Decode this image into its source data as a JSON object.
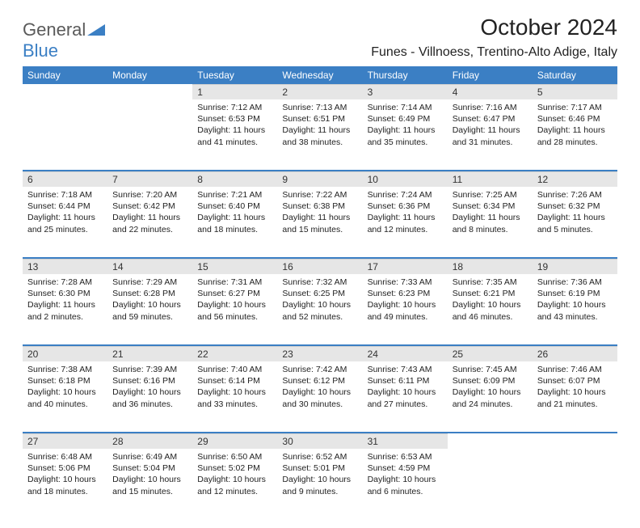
{
  "brand": {
    "name_part1": "General",
    "name_part2": "Blue"
  },
  "title": "October 2024",
  "location": "Funes - Villnoess, Trentino-Alto Adige, Italy",
  "colors": {
    "header_bg": "#3b7fc4",
    "header_text": "#ffffff",
    "daynum_bg": "#e6e6e6",
    "text": "#222222",
    "logo_gray": "#5a5a5a",
    "logo_blue": "#3b7fc4"
  },
  "typography": {
    "title_fontsize": 28,
    "location_fontsize": 16,
    "dayheader_fontsize": 12,
    "daynum_fontsize": 12,
    "body_fontsize": 10.5
  },
  "weekdays": [
    "Sunday",
    "Monday",
    "Tuesday",
    "Wednesday",
    "Thursday",
    "Friday",
    "Saturday"
  ],
  "weeks": [
    [
      null,
      null,
      {
        "d": "1",
        "sr": "7:12 AM",
        "ss": "6:53 PM",
        "dl": "11 hours and 41 minutes."
      },
      {
        "d": "2",
        "sr": "7:13 AM",
        "ss": "6:51 PM",
        "dl": "11 hours and 38 minutes."
      },
      {
        "d": "3",
        "sr": "7:14 AM",
        "ss": "6:49 PM",
        "dl": "11 hours and 35 minutes."
      },
      {
        "d": "4",
        "sr": "7:16 AM",
        "ss": "6:47 PM",
        "dl": "11 hours and 31 minutes."
      },
      {
        "d": "5",
        "sr": "7:17 AM",
        "ss": "6:46 PM",
        "dl": "11 hours and 28 minutes."
      }
    ],
    [
      {
        "d": "6",
        "sr": "7:18 AM",
        "ss": "6:44 PM",
        "dl": "11 hours and 25 minutes."
      },
      {
        "d": "7",
        "sr": "7:20 AM",
        "ss": "6:42 PM",
        "dl": "11 hours and 22 minutes."
      },
      {
        "d": "8",
        "sr": "7:21 AM",
        "ss": "6:40 PM",
        "dl": "11 hours and 18 minutes."
      },
      {
        "d": "9",
        "sr": "7:22 AM",
        "ss": "6:38 PM",
        "dl": "11 hours and 15 minutes."
      },
      {
        "d": "10",
        "sr": "7:24 AM",
        "ss": "6:36 PM",
        "dl": "11 hours and 12 minutes."
      },
      {
        "d": "11",
        "sr": "7:25 AM",
        "ss": "6:34 PM",
        "dl": "11 hours and 8 minutes."
      },
      {
        "d": "12",
        "sr": "7:26 AM",
        "ss": "6:32 PM",
        "dl": "11 hours and 5 minutes."
      }
    ],
    [
      {
        "d": "13",
        "sr": "7:28 AM",
        "ss": "6:30 PM",
        "dl": "11 hours and 2 minutes."
      },
      {
        "d": "14",
        "sr": "7:29 AM",
        "ss": "6:28 PM",
        "dl": "10 hours and 59 minutes."
      },
      {
        "d": "15",
        "sr": "7:31 AM",
        "ss": "6:27 PM",
        "dl": "10 hours and 56 minutes."
      },
      {
        "d": "16",
        "sr": "7:32 AM",
        "ss": "6:25 PM",
        "dl": "10 hours and 52 minutes."
      },
      {
        "d": "17",
        "sr": "7:33 AM",
        "ss": "6:23 PM",
        "dl": "10 hours and 49 minutes."
      },
      {
        "d": "18",
        "sr": "7:35 AM",
        "ss": "6:21 PM",
        "dl": "10 hours and 46 minutes."
      },
      {
        "d": "19",
        "sr": "7:36 AM",
        "ss": "6:19 PM",
        "dl": "10 hours and 43 minutes."
      }
    ],
    [
      {
        "d": "20",
        "sr": "7:38 AM",
        "ss": "6:18 PM",
        "dl": "10 hours and 40 minutes."
      },
      {
        "d": "21",
        "sr": "7:39 AM",
        "ss": "6:16 PM",
        "dl": "10 hours and 36 minutes."
      },
      {
        "d": "22",
        "sr": "7:40 AM",
        "ss": "6:14 PM",
        "dl": "10 hours and 33 minutes."
      },
      {
        "d": "23",
        "sr": "7:42 AM",
        "ss": "6:12 PM",
        "dl": "10 hours and 30 minutes."
      },
      {
        "d": "24",
        "sr": "7:43 AM",
        "ss": "6:11 PM",
        "dl": "10 hours and 27 minutes."
      },
      {
        "d": "25",
        "sr": "7:45 AM",
        "ss": "6:09 PM",
        "dl": "10 hours and 24 minutes."
      },
      {
        "d": "26",
        "sr": "7:46 AM",
        "ss": "6:07 PM",
        "dl": "10 hours and 21 minutes."
      }
    ],
    [
      {
        "d": "27",
        "sr": "6:48 AM",
        "ss": "5:06 PM",
        "dl": "10 hours and 18 minutes."
      },
      {
        "d": "28",
        "sr": "6:49 AM",
        "ss": "5:04 PM",
        "dl": "10 hours and 15 minutes."
      },
      {
        "d": "29",
        "sr": "6:50 AM",
        "ss": "5:02 PM",
        "dl": "10 hours and 12 minutes."
      },
      {
        "d": "30",
        "sr": "6:52 AM",
        "ss": "5:01 PM",
        "dl": "10 hours and 9 minutes."
      },
      {
        "d": "31",
        "sr": "6:53 AM",
        "ss": "4:59 PM",
        "dl": "10 hours and 6 minutes."
      },
      null,
      null
    ]
  ],
  "labels": {
    "sunrise": "Sunrise:",
    "sunset": "Sunset:",
    "daylight": "Daylight:"
  }
}
